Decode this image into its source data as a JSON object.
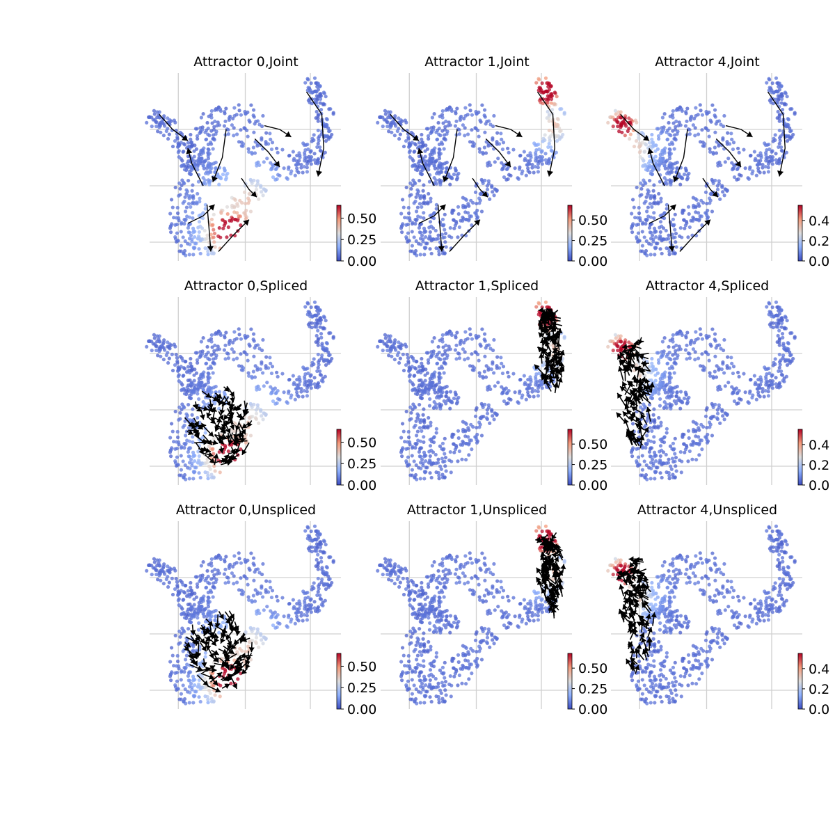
{
  "figure": {
    "background": "#ffffff",
    "grid_color": "#d0d0d0",
    "arrow_color": "#000000",
    "colormap": "coolwarm",
    "colormap_stops": [
      "#3b4cc0",
      "#8db0fe",
      "#dddddd",
      "#f49a7b",
      "#b40426"
    ]
  },
  "chart_data": [
    {
      "type": "scatter",
      "title": "Attractor 0,Joint",
      "attractor": 0,
      "layer": "Joint",
      "overlay": "streamlines",
      "colorbar": {
        "range": [
          0,
          0.65
        ],
        "ticks": [
          "0.00",
          "0.25",
          "0.50"
        ]
      }
    },
    {
      "type": "scatter",
      "title": "Attractor 1,Joint",
      "attractor": 1,
      "layer": "Joint",
      "overlay": "streamlines",
      "colorbar": {
        "range": [
          0,
          0.68
        ],
        "ticks": [
          "0.00",
          "0.25",
          "0.50"
        ]
      }
    },
    {
      "type": "scatter",
      "title": "Attractor 4,Joint",
      "attractor": 4,
      "layer": "Joint",
      "overlay": "streamlines",
      "colorbar": {
        "range": [
          0,
          0.55
        ],
        "ticks": [
          "0.0",
          "0.2",
          "0.4"
        ]
      }
    },
    {
      "type": "scatter",
      "title": "Attractor 0,Spliced",
      "attractor": 0,
      "layer": "Spliced",
      "overlay": "arrows",
      "colorbar": {
        "range": [
          0,
          0.65
        ],
        "ticks": [
          "0.00",
          "0.25",
          "0.50"
        ]
      }
    },
    {
      "type": "scatter",
      "title": "Attractor 1,Spliced",
      "attractor": 1,
      "layer": "Spliced",
      "overlay": "arrows",
      "colorbar": {
        "range": [
          0,
          0.68
        ],
        "ticks": [
          "0.00",
          "0.25",
          "0.50"
        ]
      }
    },
    {
      "type": "scatter",
      "title": "Attractor 4,Spliced",
      "attractor": 4,
      "layer": "Spliced",
      "overlay": "arrows",
      "colorbar": {
        "range": [
          0,
          0.55
        ],
        "ticks": [
          "0.0",
          "0.2",
          "0.4"
        ]
      }
    },
    {
      "type": "scatter",
      "title": "Attractor 0,Unspliced",
      "attractor": 0,
      "layer": "Unspliced",
      "overlay": "arrows",
      "colorbar": {
        "range": [
          0,
          0.65
        ],
        "ticks": [
          "0.00",
          "0.25",
          "0.50"
        ]
      }
    },
    {
      "type": "scatter",
      "title": "Attractor 1,Unspliced",
      "attractor": 1,
      "layer": "Unspliced",
      "overlay": "arrows",
      "colorbar": {
        "range": [
          0,
          0.68
        ],
        "ticks": [
          "0.00",
          "0.25",
          "0.50"
        ]
      }
    },
    {
      "type": "scatter",
      "title": "Attractor 4,Unspliced",
      "attractor": 4,
      "layer": "Unspliced",
      "overlay": "arrows",
      "colorbar": {
        "range": [
          0,
          0.55
        ],
        "ticks": [
          "0.0",
          "0.2",
          "0.4"
        ]
      }
    }
  ]
}
